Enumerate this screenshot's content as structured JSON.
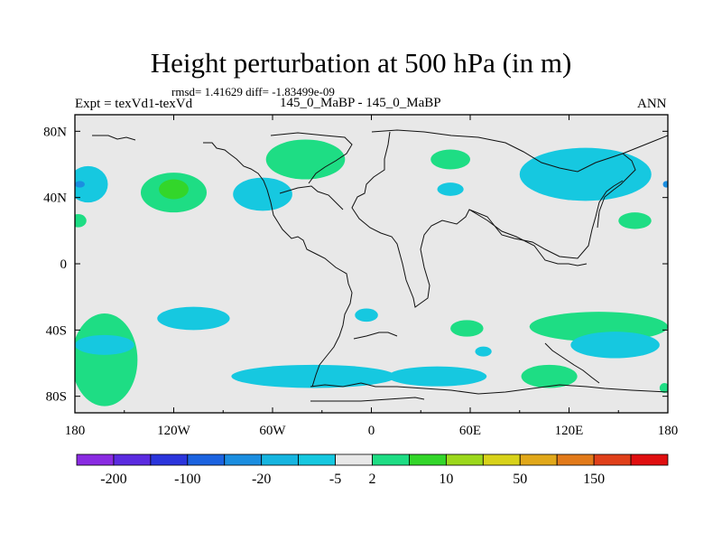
{
  "chart_data": {
    "type": "heatmap",
    "title": "Height perturbation at 500 hPa (in m)",
    "subtitle_stats": "rmsd= 1.41629 diff= -1.83499e-09",
    "experiment_label": "Expt = texVd1-texVd",
    "case_label": "145_0_MaBP - 145_0_MaBP",
    "season_label": "ANN",
    "x_ticks": [
      "180",
      "120W",
      "60W",
      "0",
      "60E",
      "120E",
      "180"
    ],
    "x_tick_values": [
      -180,
      -120,
      -60,
      0,
      60,
      120,
      180
    ],
    "y_ticks": [
      "80N",
      "40N",
      "0",
      "40S",
      "80S"
    ],
    "y_tick_values": [
      80,
      40,
      0,
      -40,
      -80
    ],
    "xlim": [
      -180,
      180
    ],
    "ylim": [
      -90,
      90
    ],
    "colorbar_labels": [
      "-200",
      "-100",
      "-20",
      "-5",
      "2",
      "10",
      "50",
      "150"
    ],
    "colorbar_colors": [
      "#8a2be2",
      "#5b2be0",
      "#2b35dc",
      "#1c63e0",
      "#1b8ee0",
      "#16b5e0",
      "#16c8e0",
      "#e8e8e8",
      "#1edd84",
      "#33d62a",
      "#9cd81c",
      "#d8d21a",
      "#e1a81a",
      "#e27a1a",
      "#e0401a",
      "#e00f10"
    ],
    "fields": [
      {
        "value_class": "+2..10",
        "color": "#1edd84",
        "regions": [
          {
            "name": "north-pacific-high",
            "lon": -120,
            "lat": 43,
            "rlon": 20,
            "rlat": 12
          },
          {
            "name": "north-atlantic-high",
            "lon": -40,
            "lat": 63,
            "rlon": 24,
            "rlat": 12
          },
          {
            "name": "eurasia-high",
            "lon": 48,
            "lat": 63,
            "rlon": 12,
            "rlat": 6
          },
          {
            "name": "west-pacific-high",
            "lon": 160,
            "lat": 26,
            "rlon": 10,
            "rlat": 5
          },
          {
            "name": "dateline-west-high",
            "lon": -178,
            "lat": 26,
            "rlon": 5,
            "rlat": 4
          },
          {
            "name": "south-pacific-ring-high",
            "lon": -162,
            "lat": -58,
            "rlon": 20,
            "rlat": 28
          },
          {
            "name": "south-indian-high",
            "lon": 138,
            "lat": -38,
            "rlon": 42,
            "rlat": 9
          },
          {
            "name": "southern-ocean-high",
            "lon": 108,
            "lat": -68,
            "rlon": 17,
            "rlat": 7
          },
          {
            "name": "south-africa-high",
            "lon": 58,
            "lat": -39,
            "rlon": 10,
            "rlat": 5
          },
          {
            "name": "dateline-east-high",
            "lon": 178,
            "lat": -75,
            "rlon": 3,
            "rlat": 3
          }
        ]
      },
      {
        "value_class": "+10..20",
        "color": "#33d62a",
        "regions": [
          {
            "name": "north-pacific-core",
            "lon": -120,
            "lat": 45,
            "rlon": 9,
            "rlat": 6
          }
        ]
      },
      {
        "value_class": "-5..-2",
        "color": "#16c8e0",
        "regions": [
          {
            "name": "north-america-low",
            "lon": -66,
            "lat": 42,
            "rlon": 18,
            "rlat": 10
          },
          {
            "name": "europe-low",
            "lon": 48,
            "lat": 45,
            "rlon": 8,
            "rlat": 4
          },
          {
            "name": "east-asia-low",
            "lon": 130,
            "lat": 54,
            "rlon": 40,
            "rlat": 16
          },
          {
            "name": "dateline-north-low",
            "lon": -172,
            "lat": 48,
            "rlon": 12,
            "rlat": 11
          },
          {
            "name": "south-pacific-low",
            "lon": -108,
            "lat": -33,
            "rlon": 22,
            "rlat": 7
          },
          {
            "name": "south-atlantic-low",
            "lon": -3,
            "lat": -31,
            "rlon": 7,
            "rlat": 4
          },
          {
            "name": "antarctic-coast-low",
            "lon": -35,
            "lat": -68,
            "rlon": 50,
            "rlat": 7
          },
          {
            "name": "antarctic-coast-east-low",
            "lon": 40,
            "lat": -68,
            "rlon": 30,
            "rlat": 6
          },
          {
            "name": "southwest-indian-low",
            "lon": 68,
            "lat": -53,
            "rlon": 5,
            "rlat": 3
          },
          {
            "name": "south-indian-low",
            "lon": 148,
            "lat": -49,
            "rlon": 27,
            "rlat": 8
          },
          {
            "name": "southwest-pacific-low",
            "lon": -162,
            "lat": -49,
            "rlon": 18,
            "rlat": 6
          }
        ]
      },
      {
        "value_class": "-20..-5",
        "color": "#1b8ee0",
        "regions": [
          {
            "name": "dateline-north-core-west",
            "lon": -177,
            "lat": 48,
            "rlon": 3,
            "rlat": 2
          },
          {
            "name": "dateline-north-core-east",
            "lon": 179,
            "lat": 48,
            "rlon": 2,
            "rlat": 2
          }
        ]
      }
    ],
    "continents": "outline only"
  }
}
